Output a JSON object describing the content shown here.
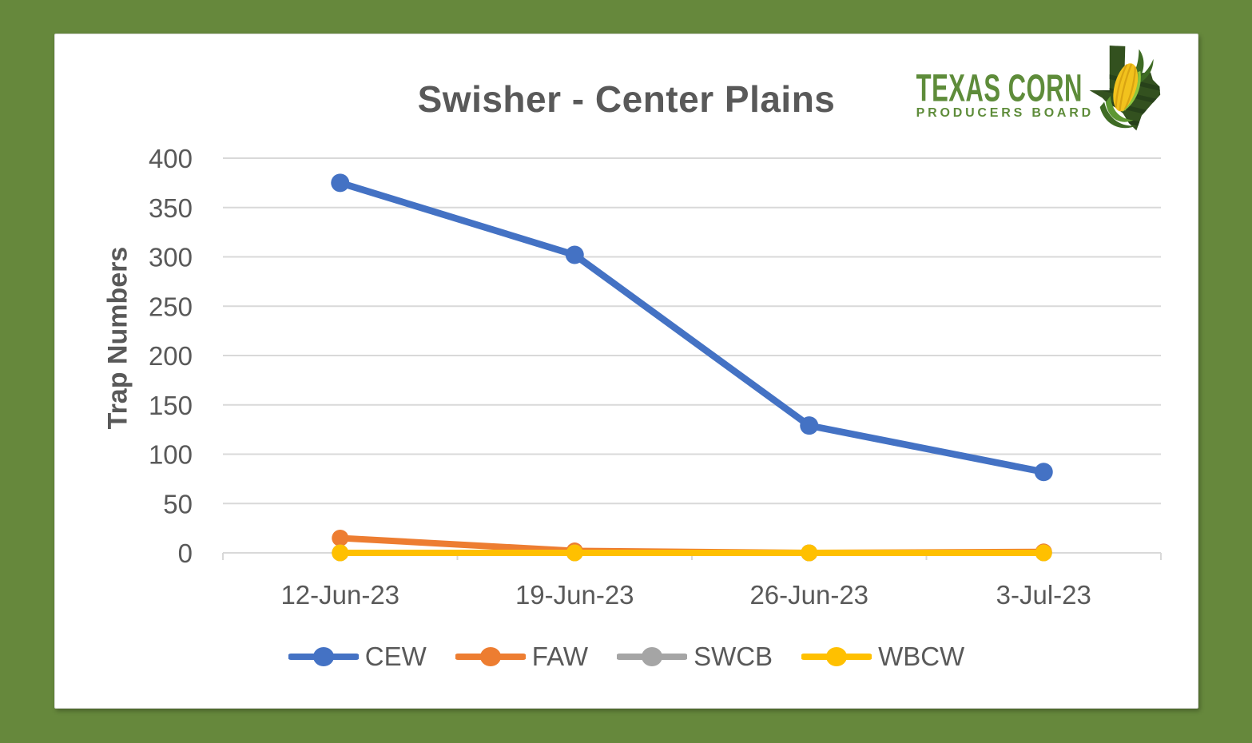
{
  "window": {
    "background_color": "#66883C",
    "card_color": "#FFFFFF"
  },
  "chart_data": {
    "type": "line",
    "title": "Swisher - Center Plains",
    "xlabel": "",
    "ylabel": "Trap Numbers",
    "categories": [
      "12-Jun-23",
      "19-Jun-23",
      "26-Jun-23",
      "3-Jul-23"
    ],
    "series": [
      {
        "name": "CEW",
        "color": "#4472C4",
        "values": [
          375,
          302,
          129,
          82
        ]
      },
      {
        "name": "FAW",
        "color": "#ED7D31",
        "values": [
          15,
          2,
          0,
          1
        ]
      },
      {
        "name": "SWCB",
        "color": "#A5A5A5",
        "values": [
          0,
          0,
          0,
          0
        ]
      },
      {
        "name": "WBCW",
        "color": "#FFC000",
        "values": [
          0,
          0,
          0,
          0
        ]
      }
    ],
    "ylim": [
      0,
      400
    ],
    "ytick_step": 50,
    "yticks": [
      0,
      50,
      100,
      150,
      200,
      250,
      300,
      350,
      400
    ],
    "grid": true,
    "gridline_color": "#D9D9D9",
    "axis_text_color": "#595959",
    "legend_position": "bottom",
    "legend_entries": [
      "CEW",
      "FAW",
      "SWCB",
      "WBCW"
    ]
  },
  "logo": {
    "line1": "TEXAS CORN",
    "line2": "PRODUCERS BOARD",
    "text_color": "#5E8C3A",
    "state_color": "#33511F",
    "state_stripe_color": "#27411A",
    "corn_color": "#F2C21D",
    "husk_color": "#8CC63E"
  }
}
